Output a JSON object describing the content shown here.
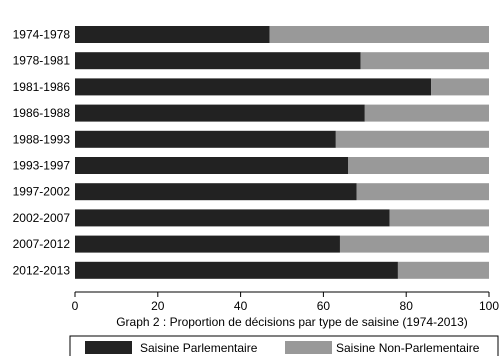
{
  "chart_data": {
    "type": "bar",
    "orientation": "horizontal",
    "stacked": true,
    "categories": [
      "1974-1978",
      "1978-1981",
      "1981-1986",
      "1986-1988",
      "1988-1993",
      "1993-1997",
      "1997-2002",
      "2002-2007",
      "2007-2012",
      "2012-2013"
    ],
    "series": [
      {
        "name": "Saisine Parlementaire",
        "color": "#222222",
        "values": [
          47,
          69,
          86,
          70,
          63,
          66,
          68,
          76,
          64,
          78
        ]
      },
      {
        "name": "Saisine Non-Parlementaire",
        "color": "#999999",
        "values": [
          53,
          31,
          14,
          30,
          37,
          34,
          32,
          24,
          36,
          22
        ]
      }
    ],
    "xlim": [
      0,
      100
    ],
    "xticks": [
      0,
      20,
      40,
      60,
      80,
      100
    ],
    "caption": "Graph 2 : Proportion de décisions par type de saisine (1974-2013)",
    "grid": false,
    "legend_position": "bottom"
  }
}
